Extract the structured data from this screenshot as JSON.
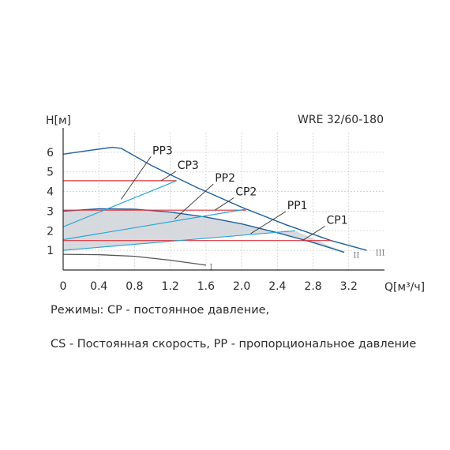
{
  "chart_data": {
    "type": "line",
    "title": "WRE 32/60-180",
    "ylabel": "H[м]",
    "xlabel": "Q[м³/ч]",
    "xlim": [
      0,
      3.6
    ],
    "ylim": [
      0,
      7
    ],
    "x_ticks": [
      "0",
      "0.4",
      "0.8",
      "1.2",
      "1.6",
      "2.0",
      "2.4",
      "2.8",
      "3.2"
    ],
    "y_ticks": [
      "1",
      "2",
      "3",
      "4",
      "5",
      "6"
    ],
    "grid": true,
    "colors": {
      "pump_curve": "#1f5f9c",
      "cp": "#e0323c",
      "pp": "#2aa6d6",
      "shading": "#cfd3d9",
      "low": "#555555"
    },
    "series": [
      {
        "name": "III",
        "kind": "pump_curve",
        "x": [
          0,
          0.3,
          0.55,
          0.65,
          1.0,
          1.5,
          2.0,
          2.5,
          3.0,
          3.4
        ],
        "y": [
          5.9,
          6.1,
          6.25,
          6.2,
          5.3,
          4.2,
          3.2,
          2.3,
          1.5,
          1.0
        ]
      },
      {
        "name": "II",
        "kind": "pump_curve",
        "x": [
          0,
          0.4,
          0.8,
          1.2,
          1.6,
          2.0,
          2.4,
          2.8,
          3.15
        ],
        "y": [
          3.0,
          3.12,
          3.1,
          2.95,
          2.7,
          2.35,
          1.9,
          1.4,
          0.9
        ]
      },
      {
        "name": "I",
        "kind": "low_curve",
        "x": [
          0,
          0.4,
          0.8,
          1.2,
          1.6
        ],
        "y": [
          0.8,
          0.78,
          0.7,
          0.5,
          0.25
        ]
      },
      {
        "name": "CP1",
        "kind": "cp",
        "x": [
          0,
          3.0
        ],
        "y": [
          1.5,
          1.5
        ]
      },
      {
        "name": "CP2",
        "kind": "cp",
        "x": [
          0,
          2.05
        ],
        "y": [
          3.05,
          3.05
        ]
      },
      {
        "name": "CP3",
        "kind": "cp",
        "x": [
          0,
          1.27
        ],
        "y": [
          4.55,
          4.55
        ]
      },
      {
        "name": "PP1",
        "kind": "pp",
        "x": [
          0,
          2.6
        ],
        "y": [
          1.0,
          2.0
        ]
      },
      {
        "name": "PP2",
        "kind": "pp",
        "x": [
          0,
          2.05
        ],
        "y": [
          1.55,
          3.1
        ]
      },
      {
        "name": "PP3",
        "kind": "pp",
        "x": [
          0,
          1.27
        ],
        "y": [
          2.2,
          4.55
        ]
      }
    ],
    "annotations": [
      {
        "text": "PP3",
        "tx": 1.0,
        "ty": 5.9,
        "ax": 0.65,
        "ay": 3.6
      },
      {
        "text": "CP3",
        "tx": 1.28,
        "ty": 5.15,
        "ax": 1.1,
        "ay": 4.55
      },
      {
        "text": "PP2",
        "tx": 1.7,
        "ty": 4.5,
        "ax": 1.25,
        "ay": 2.6
      },
      {
        "text": "CP2",
        "tx": 1.93,
        "ty": 3.8,
        "ax": 1.7,
        "ay": 3.05
      },
      {
        "text": "PP1",
        "tx": 2.51,
        "ty": 3.1,
        "ax": 2.1,
        "ay": 1.85
      },
      {
        "text": "CP1",
        "tx": 2.95,
        "ty": 2.35,
        "ax": 2.68,
        "ay": 1.5
      }
    ],
    "curve_labels": [
      "I",
      "II",
      "III"
    ]
  },
  "notes": {
    "line1": "Режимы: CP - постоянное давление,",
    "line2": "CS - Постоянная скорость, PP - пропорциональное давление"
  }
}
